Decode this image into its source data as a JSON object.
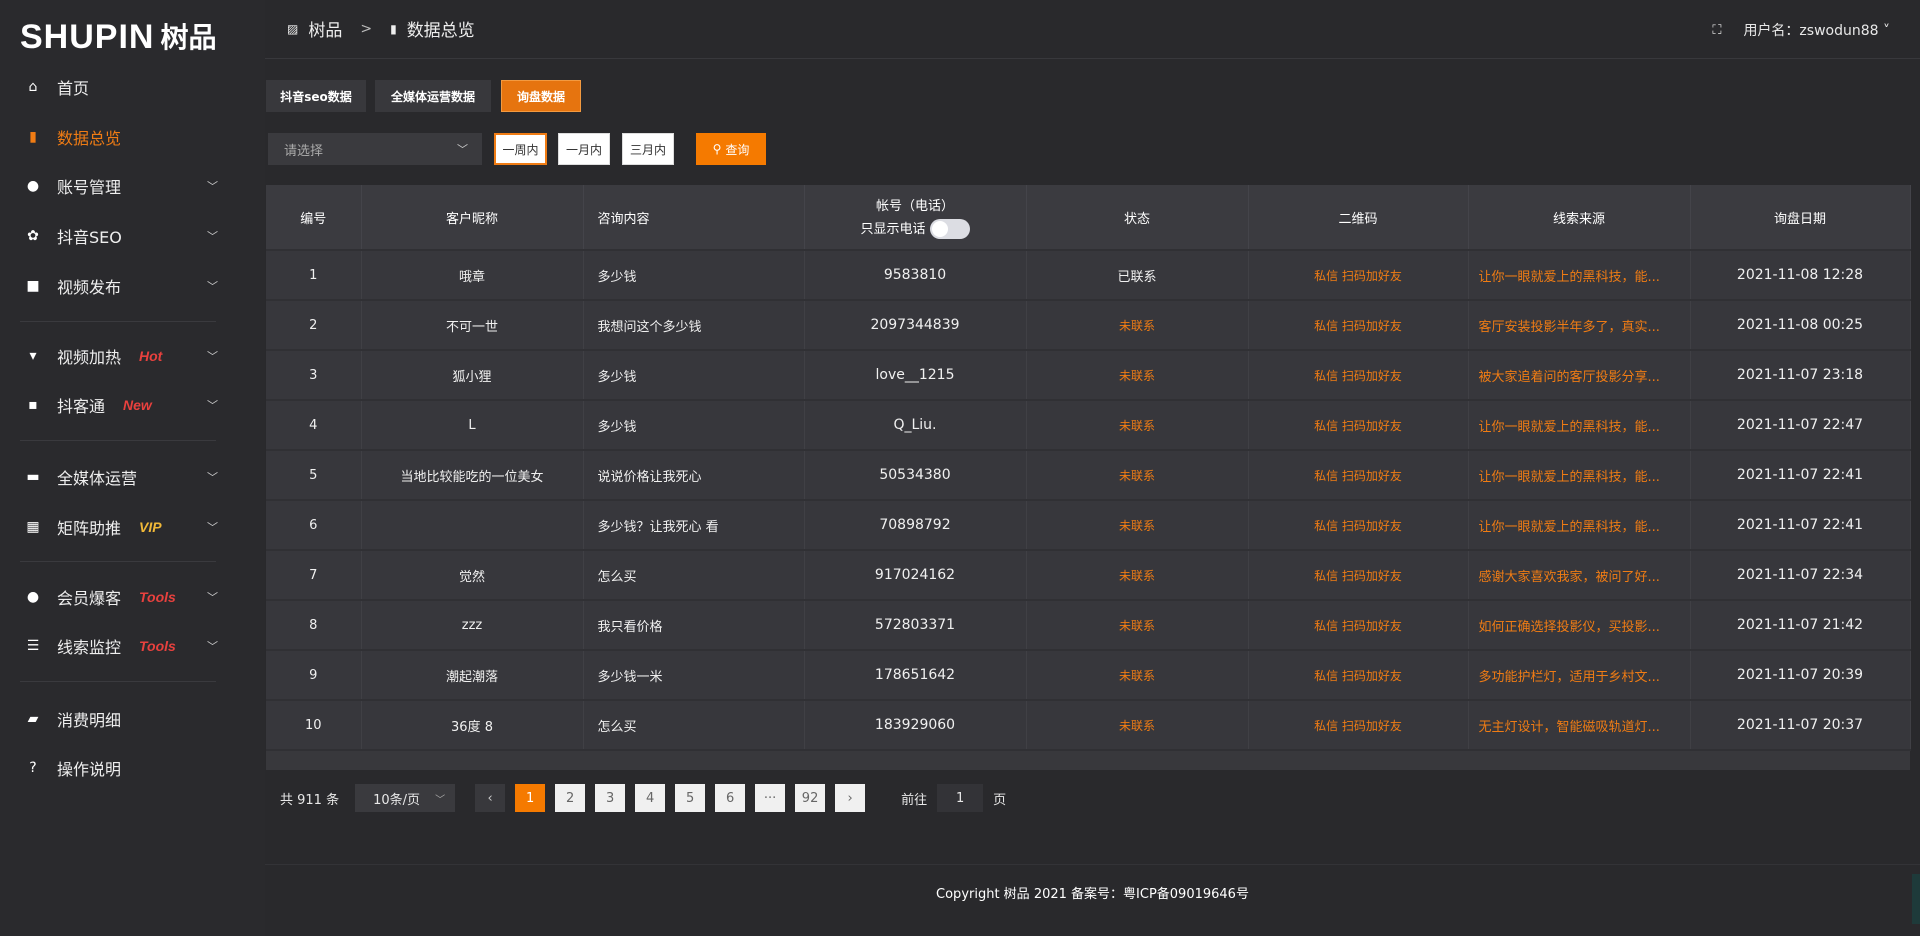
{
  "brand": {
    "logo_en": "SHUPIN",
    "logo_cn": "树品"
  },
  "sidebar": {
    "items": [
      {
        "label": "首页",
        "icon": "home-icon",
        "active": false
      },
      {
        "label": "数据总览",
        "icon": "bar-chart-icon",
        "active": true
      },
      {
        "label": "账号管理",
        "icon": "user-icon",
        "expand": true
      },
      {
        "label": "抖音SEO",
        "icon": "gear-icon",
        "expand": true
      },
      {
        "label": "视频发布",
        "icon": "camera-icon",
        "expand": true
      },
      {
        "label": "视频加热",
        "icon": "flame-icon",
        "badge": "Hot",
        "badge_color": "#e8413e",
        "expand": true
      },
      {
        "label": "抖客通",
        "icon": "chat-icon",
        "badge": "New",
        "badge_color": "#e8413e",
        "expand": true
      },
      {
        "label": "全媒体运营",
        "icon": "monitor-icon",
        "expand": true
      },
      {
        "label": "矩阵助推",
        "icon": "grid-icon",
        "badge": "VIP",
        "badge_color": "#f0b838",
        "expand": true
      },
      {
        "label": "会员爆客",
        "icon": "member-icon",
        "badge": "Tools",
        "badge_color": "#e8413e",
        "expand": true
      },
      {
        "label": "线索监控",
        "icon": "sliders-icon",
        "badge": "Tools",
        "badge_color": "#e8413e",
        "expand": true
      },
      {
        "label": "消费明细",
        "icon": "wallet-icon"
      },
      {
        "label": "操作说明",
        "icon": "help-icon"
      }
    ]
  },
  "header": {
    "breadcrumb": [
      "树品",
      "数据总览"
    ],
    "breadcrumb_sep": ">",
    "user_label": "用户名：zswodun88"
  },
  "tabs": [
    {
      "label": "抖音seo数据"
    },
    {
      "label": "全媒体运营数据"
    },
    {
      "label": "询盘数据",
      "active": true
    }
  ],
  "filters": {
    "select_placeholder": "请选择",
    "ranges": [
      "一周内",
      "一月内",
      "三月内"
    ],
    "active_range": "一周内",
    "query_label": "查询"
  },
  "table": {
    "headers": [
      "编号",
      "客户昵称",
      "咨询内容",
      "帐号（电话）",
      "状态",
      "二维码",
      "线索来源",
      "询盘日期"
    ],
    "phone_toggle_label": "只显示电话",
    "phone_toggle_on": false,
    "qr_text": "私信 扫码加好友",
    "rows": [
      [
        "1",
        "哦章",
        "多少钱",
        "9583810",
        "已联系",
        "让你一眼就爱上的黑科技，能...",
        "2021-11-08 12:28"
      ],
      [
        "2",
        "不可一世",
        "我想问这个多少钱",
        "2097344839",
        "未联系",
        "客厅安装投影半年多了，真实...",
        "2021-11-08 00:25"
      ],
      [
        "3",
        "狐小狸",
        "多少钱",
        "love__1215",
        "未联系",
        "被大家追着问的客厅投影分享...",
        "2021-11-07 23:18"
      ],
      [
        "4",
        "L",
        "多少钱",
        "Q_Liu.",
        "未联系",
        "让你一眼就爱上的黑科技，能...",
        "2021-11-07 22:47"
      ],
      [
        "5",
        "当地比较能吃的一位美女",
        "说说价格让我死心",
        "50534380",
        "未联系",
        "让你一眼就爱上的黑科技，能...",
        "2021-11-07 22:41"
      ],
      [
        "6",
        "",
        "多少钱？让我死心 看",
        "70898792",
        "未联系",
        "让你一眼就爱上的黑科技，能...",
        "2021-11-07 22:41"
      ],
      [
        "7",
        "觉然",
        "怎么买",
        "917024162",
        "未联系",
        "感谢大家喜欢我家，被问了好...",
        "2021-11-07 22:34"
      ],
      [
        "8",
        "zzz",
        "我只看价格",
        "572803371",
        "未联系",
        "如何正确选择投影仪，买投影...",
        "2021-11-07 21:42"
      ],
      [
        "9",
        "潮起潮落",
        "多少钱一米",
        "178651642",
        "未联系",
        "多功能护栏灯，适用于乡村文...",
        "2021-11-07 20:39"
      ],
      [
        "10",
        "36度 8",
        "怎么买",
        "183929060",
        "未联系",
        "无主灯设计，智能磁吸轨道灯...",
        "2021-11-07 20:37"
      ]
    ]
  },
  "pagination": {
    "total": "共 911 条",
    "page_size": "10条/页",
    "pages": [
      "1",
      "2",
      "3",
      "4",
      "5",
      "6",
      "···",
      "92"
    ],
    "current": "1",
    "goto_label": "前往",
    "goto_value": "1",
    "page_suffix": "页"
  },
  "footer": {
    "copyright": "Copyright 树品 2021 备案号：粤ICP备09019646号"
  },
  "colors": {
    "accent": "#f57a00",
    "background": "#29292c",
    "table": "#37373c"
  }
}
